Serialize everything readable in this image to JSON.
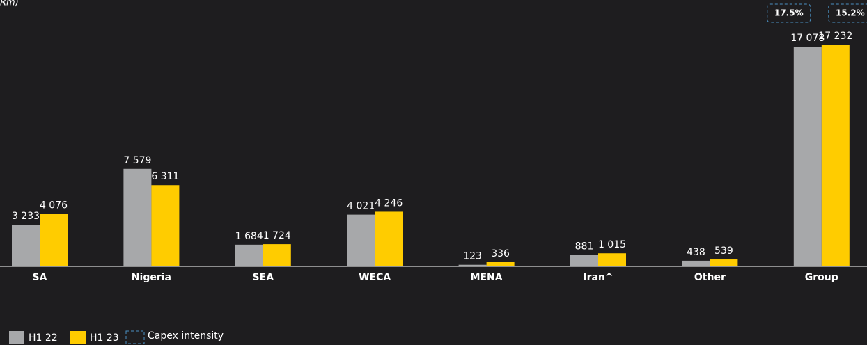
{
  "chart_data": {
    "type": "bar",
    "title": "Rm)",
    "categories": [
      "SA",
      "Nigeria",
      "SEA",
      "WECA",
      "MENA",
      "Iran^",
      "Other",
      "Group"
    ],
    "series": [
      {
        "name": "H1 22",
        "color": "#a7a8aa",
        "values": [
          3233,
          7579,
          1684,
          4021,
          123,
          881,
          438,
          17078
        ],
        "value_labels": [
          "3 233",
          "7 579",
          "1 684",
          "4 021",
          "123",
          "881",
          "438",
          "17 078"
        ]
      },
      {
        "name": "H1 23",
        "color": "#ffcc00",
        "values": [
          4076,
          6311,
          1724,
          4246,
          336,
          1015,
          539,
          17232
        ],
        "value_labels": [
          "4 076",
          "6 311",
          "1 724",
          "4 246",
          "336",
          "1 015",
          "539",
          "17 232"
        ]
      }
    ],
    "annotations": [
      "17.5%",
      "15.2%"
    ],
    "annotation_legend": "Capex intensity",
    "ylim": [
      0,
      18000
    ]
  }
}
